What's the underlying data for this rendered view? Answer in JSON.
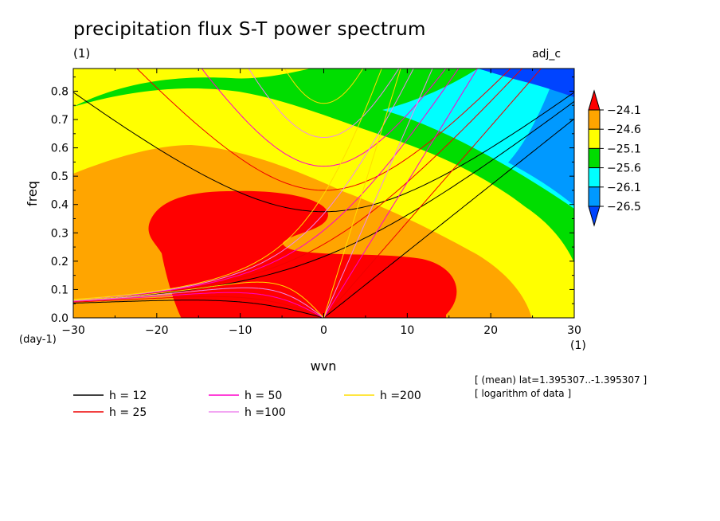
{
  "chart_data": {
    "type": "heatmap",
    "title": "precipitation flux S-T power spectrum",
    "subtitle_units": "(1)",
    "tag": "adj_c",
    "xlabel": "wvn",
    "ylabel": "freq",
    "x_units": "(1)",
    "y_units": "(day-1)",
    "xlim": [
      -30,
      30
    ],
    "ylim": [
      0.0,
      0.88
    ],
    "x_ticks": [
      "-30",
      "-20",
      "-10",
      "0",
      "10",
      "20",
      "30"
    ],
    "y_ticks": [
      "0.0",
      "0.1",
      "0.2",
      "0.3",
      "0.4",
      "0.5",
      "0.6",
      "0.7",
      "0.8"
    ],
    "colorbar": {
      "levels": [
        "-24.1",
        "-24.6",
        "-25.1",
        "-25.6",
        "-26.1",
        "-26.5"
      ],
      "colors": [
        "#ff0000",
        "#ffa500",
        "#ffff00",
        "#00dd00",
        "#00ffff",
        "#0099ff",
        "#0044ff"
      ]
    },
    "dispersion_curves": [
      {
        "name": "h = 12",
        "h": 12,
        "color": "#000000"
      },
      {
        "name": "h = 25",
        "h": 25,
        "color": "#ee0000"
      },
      {
        "name": "h = 50",
        "h": 50,
        "color": "#ff00cc"
      },
      {
        "name": "h =100",
        "h": 100,
        "color": "#ee88ee"
      },
      {
        "name": "h =200",
        "h": 200,
        "color": "#ffdd00"
      }
    ],
    "info_lines": [
      "[ (mean) lat=1.395307..-1.395307 ]",
      "[ logarithm of data ]"
    ]
  }
}
